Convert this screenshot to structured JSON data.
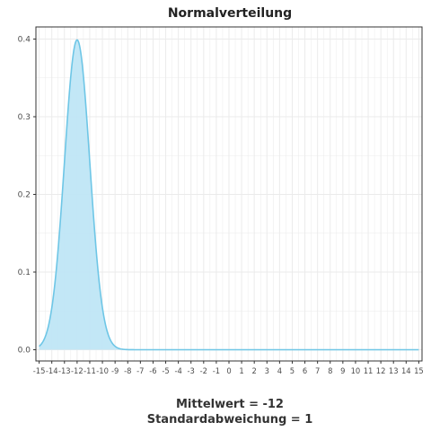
{
  "chart_data": {
    "type": "area",
    "title": "Normalverteilung",
    "xlabel_lines": [
      "Mittelwert = -12",
      "Standardabweichung = 1"
    ],
    "ylabel": "",
    "mean": -12,
    "sd": 1,
    "xlim": [
      -15,
      15
    ],
    "ylim": [
      0,
      0.4
    ],
    "x_ticks": [
      -15,
      -14,
      -13,
      -12,
      -11,
      -10,
      -9,
      -8,
      -7,
      -6,
      -5,
      -4,
      -3,
      -2,
      -1,
      0,
      1,
      2,
      3,
      4,
      5,
      6,
      7,
      8,
      9,
      10,
      11,
      12,
      13,
      14,
      15
    ],
    "y_ticks": [
      0.0,
      0.1,
      0.2,
      0.3,
      0.4
    ],
    "y_tick_labels": [
      "0.0",
      "0.1",
      "0.2",
      "0.3",
      "0.4"
    ],
    "series": [
      {
        "x": [
          -15,
          -14.5,
          -14,
          -13.5,
          -13,
          -12.5,
          -12,
          -11.5,
          -11,
          -10.5,
          -10,
          -9.5,
          -9,
          -8.5,
          -8,
          -7,
          -6,
          -5,
          -4,
          -3,
          -2,
          -1,
          0,
          1,
          2,
          3,
          4,
          5,
          6,
          7,
          8,
          9,
          10,
          11,
          12,
          13,
          14,
          15
        ],
        "y": [
          0.0044,
          0.0175,
          0.054,
          0.1295,
          0.242,
          0.352,
          0.3989,
          0.352,
          0.242,
          0.1295,
          0.054,
          0.0175,
          0.0044,
          0.0009,
          0.0001,
          0,
          0,
          0,
          0,
          0,
          0,
          0,
          0,
          0,
          0,
          0,
          0,
          0,
          0,
          0,
          0,
          0,
          0,
          0,
          0,
          0,
          0,
          0
        ]
      }
    ],
    "grid": true,
    "colors": {
      "line": "#6ec6e6",
      "fill": "#bfe6f6",
      "grid": "#ebebeb",
      "border": "#333333"
    }
  }
}
